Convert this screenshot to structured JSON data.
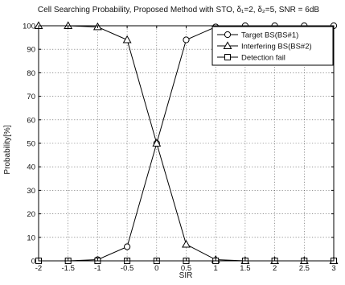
{
  "chart_data": {
    "type": "line",
    "title": "Cell Searching Probability, Proposed Method with STO, δ₁=2, δ₂=5, SNR = 6dB",
    "xlabel": "SIR",
    "ylabel": "Probability[%]",
    "xlim": [
      -2,
      3
    ],
    "ylim": [
      0,
      100
    ],
    "grid": true,
    "legend_position": "top-right",
    "x_ticks": [
      -2,
      -1.5,
      -1,
      -0.5,
      0,
      0.5,
      1,
      1.5,
      2,
      2.5,
      3
    ],
    "x_tick_labels": [
      "-2",
      "-1.5",
      "-1",
      "-0.5",
      "0",
      "0.5",
      "1",
      "1.5",
      "2",
      "2.5",
      "3"
    ],
    "y_ticks": [
      0,
      10,
      20,
      30,
      40,
      50,
      60,
      70,
      80,
      90,
      100
    ],
    "y_tick_labels": [
      "0",
      "10",
      "20",
      "30",
      "40",
      "50",
      "60",
      "70",
      "80",
      "90",
      "100"
    ],
    "x": [
      -2,
      -1.5,
      -1,
      -0.5,
      0,
      0.5,
      1,
      1.5,
      2,
      2.5,
      3
    ],
    "series": [
      {
        "name": "Target BS(BS#1)",
        "marker": "circle",
        "values": [
          0,
          0,
          0.5,
          6,
          50,
          94,
          99.5,
          100,
          100,
          100,
          100
        ]
      },
      {
        "name": "Interfering BS(BS#2)",
        "marker": "triangle",
        "values": [
          100,
          100,
          99.5,
          94,
          50,
          7,
          0.5,
          0,
          0,
          0,
          0
        ]
      },
      {
        "name": "Detection fail",
        "marker": "square",
        "values": [
          0,
          0,
          0,
          0,
          0,
          0,
          0,
          0,
          0,
          0,
          0
        ]
      }
    ]
  }
}
